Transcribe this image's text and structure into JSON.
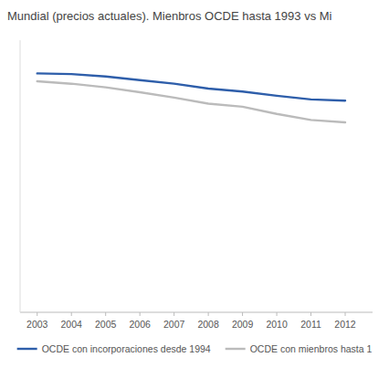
{
  "chart_data": {
    "type": "line",
    "title": "Mundial (precios actuales). Mienbros OCDE hasta 1993 vs Mi",
    "x": [
      2003,
      2004,
      2005,
      2006,
      2007,
      2008,
      2009,
      2010,
      2011,
      2012
    ],
    "series": [
      {
        "name": "OCDE con incorporaciones desde 1994",
        "color": "#2E5EAA",
        "values": [
          79.5,
          79.4,
          79.0,
          78.4,
          77.8,
          77.0,
          76.5,
          75.8,
          75.2,
          75.0
        ]
      },
      {
        "name": "OCDE con mienbros hasta 1",
        "color": "#BBBBBB",
        "values": [
          78.2,
          77.8,
          77.2,
          76.4,
          75.5,
          74.5,
          74.0,
          72.8,
          71.8,
          71.4
        ]
      }
    ],
    "xlim": [
      2002.5,
      2012.8
    ],
    "xticks": [
      2003,
      2004,
      2005,
      2006,
      2007,
      2008,
      2009,
      2010,
      2011,
      2012
    ],
    "ylim": [
      40,
      85
    ],
    "yticks": [],
    "grid": false,
    "tick_labels": "x",
    "legend": "bottom"
  }
}
